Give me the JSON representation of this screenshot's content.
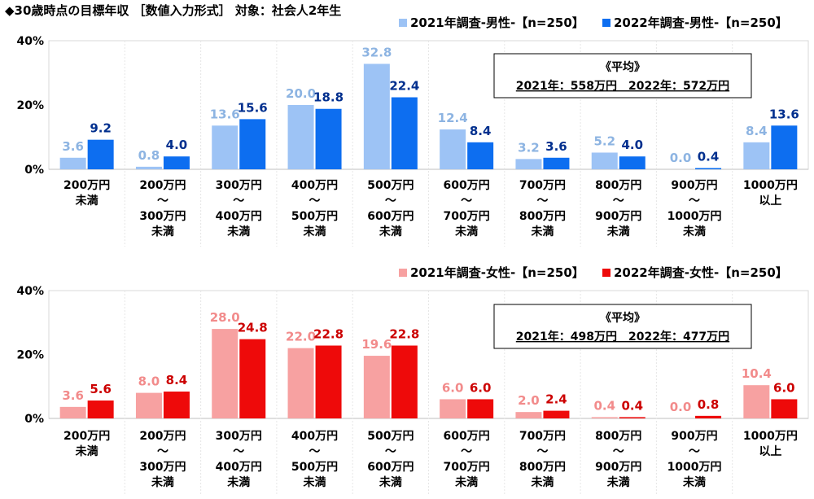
{
  "title": "◆30歳時点の目標年収 ［数値入力形式］ 対象：社会人2年生",
  "chart_data": [
    {
      "type": "bar",
      "categories": [
        [
          "200万円",
          "未満"
        ],
        [
          "200万円",
          "～",
          "300万円",
          "未満"
        ],
        [
          "300万円",
          "～",
          "400万円",
          "未満"
        ],
        [
          "400万円",
          "～",
          "500万円",
          "未満"
        ],
        [
          "500万円",
          "～",
          "600万円",
          "未満"
        ],
        [
          "600万円",
          "～",
          "700万円",
          "未満"
        ],
        [
          "700万円",
          "～",
          "800万円",
          "未満"
        ],
        [
          "800万円",
          "～",
          "900万円",
          "未満"
        ],
        [
          "900万円",
          "～",
          "1000万円",
          "未満"
        ],
        [
          "1000万円",
          "以上"
        ]
      ],
      "series": [
        {
          "name": "2021年調査-男性-【n=250】",
          "color": "#9DC3F5",
          "label_color": "#8DB4E2",
          "values": [
            3.6,
            0.8,
            13.6,
            20.0,
            32.8,
            12.4,
            3.2,
            5.2,
            0.0,
            8.4
          ]
        },
        {
          "name": "2022年調査-男性-【n=250】",
          "color": "#0D6EF0",
          "label_color": "#002F8E",
          "values": [
            9.2,
            4.0,
            15.6,
            18.8,
            22.4,
            8.4,
            3.6,
            4.0,
            0.4,
            13.6
          ]
        }
      ],
      "yticks": [
        "0%",
        "20%",
        "40%"
      ],
      "ylim": [
        0,
        40
      ],
      "legend": "top-right",
      "grid": false,
      "average_box": {
        "heading": "《平均》",
        "line": "2021年：558万円　2022年：572万円"
      }
    },
    {
      "type": "bar",
      "categories": [
        [
          "200万円",
          "未満"
        ],
        [
          "200万円",
          "～",
          "300万円",
          "未満"
        ],
        [
          "300万円",
          "～",
          "400万円",
          "未満"
        ],
        [
          "400万円",
          "～",
          "500万円",
          "未満"
        ],
        [
          "500万円",
          "～",
          "600万円",
          "未満"
        ],
        [
          "600万円",
          "～",
          "700万円",
          "未満"
        ],
        [
          "700万円",
          "～",
          "800万円",
          "未満"
        ],
        [
          "800万円",
          "～",
          "900万円",
          "未満"
        ],
        [
          "900万円",
          "～",
          "1000万円",
          "未満"
        ],
        [
          "1000万円",
          "以上"
        ]
      ],
      "series": [
        {
          "name": "2021年調査-女性-【n=250】",
          "color": "#F7A1A1",
          "label_color": "#F28B8B",
          "values": [
            3.6,
            8.0,
            28.0,
            22.0,
            19.6,
            6.0,
            2.0,
            0.4,
            0.0,
            10.4
          ]
        },
        {
          "name": "2022年調査-女性-【n=250】",
          "color": "#EE0A0A",
          "label_color": "#CC0000",
          "values": [
            5.6,
            8.4,
            24.8,
            22.8,
            22.8,
            6.0,
            2.4,
            0.4,
            0.8,
            6.0
          ]
        }
      ],
      "yticks": [
        "0%",
        "20%",
        "40%"
      ],
      "ylim": [
        0,
        40
      ],
      "legend": "top-right",
      "grid": false,
      "average_box": {
        "heading": "《平均》",
        "line": "2021年：498万円　2022年：477万円"
      }
    }
  ]
}
